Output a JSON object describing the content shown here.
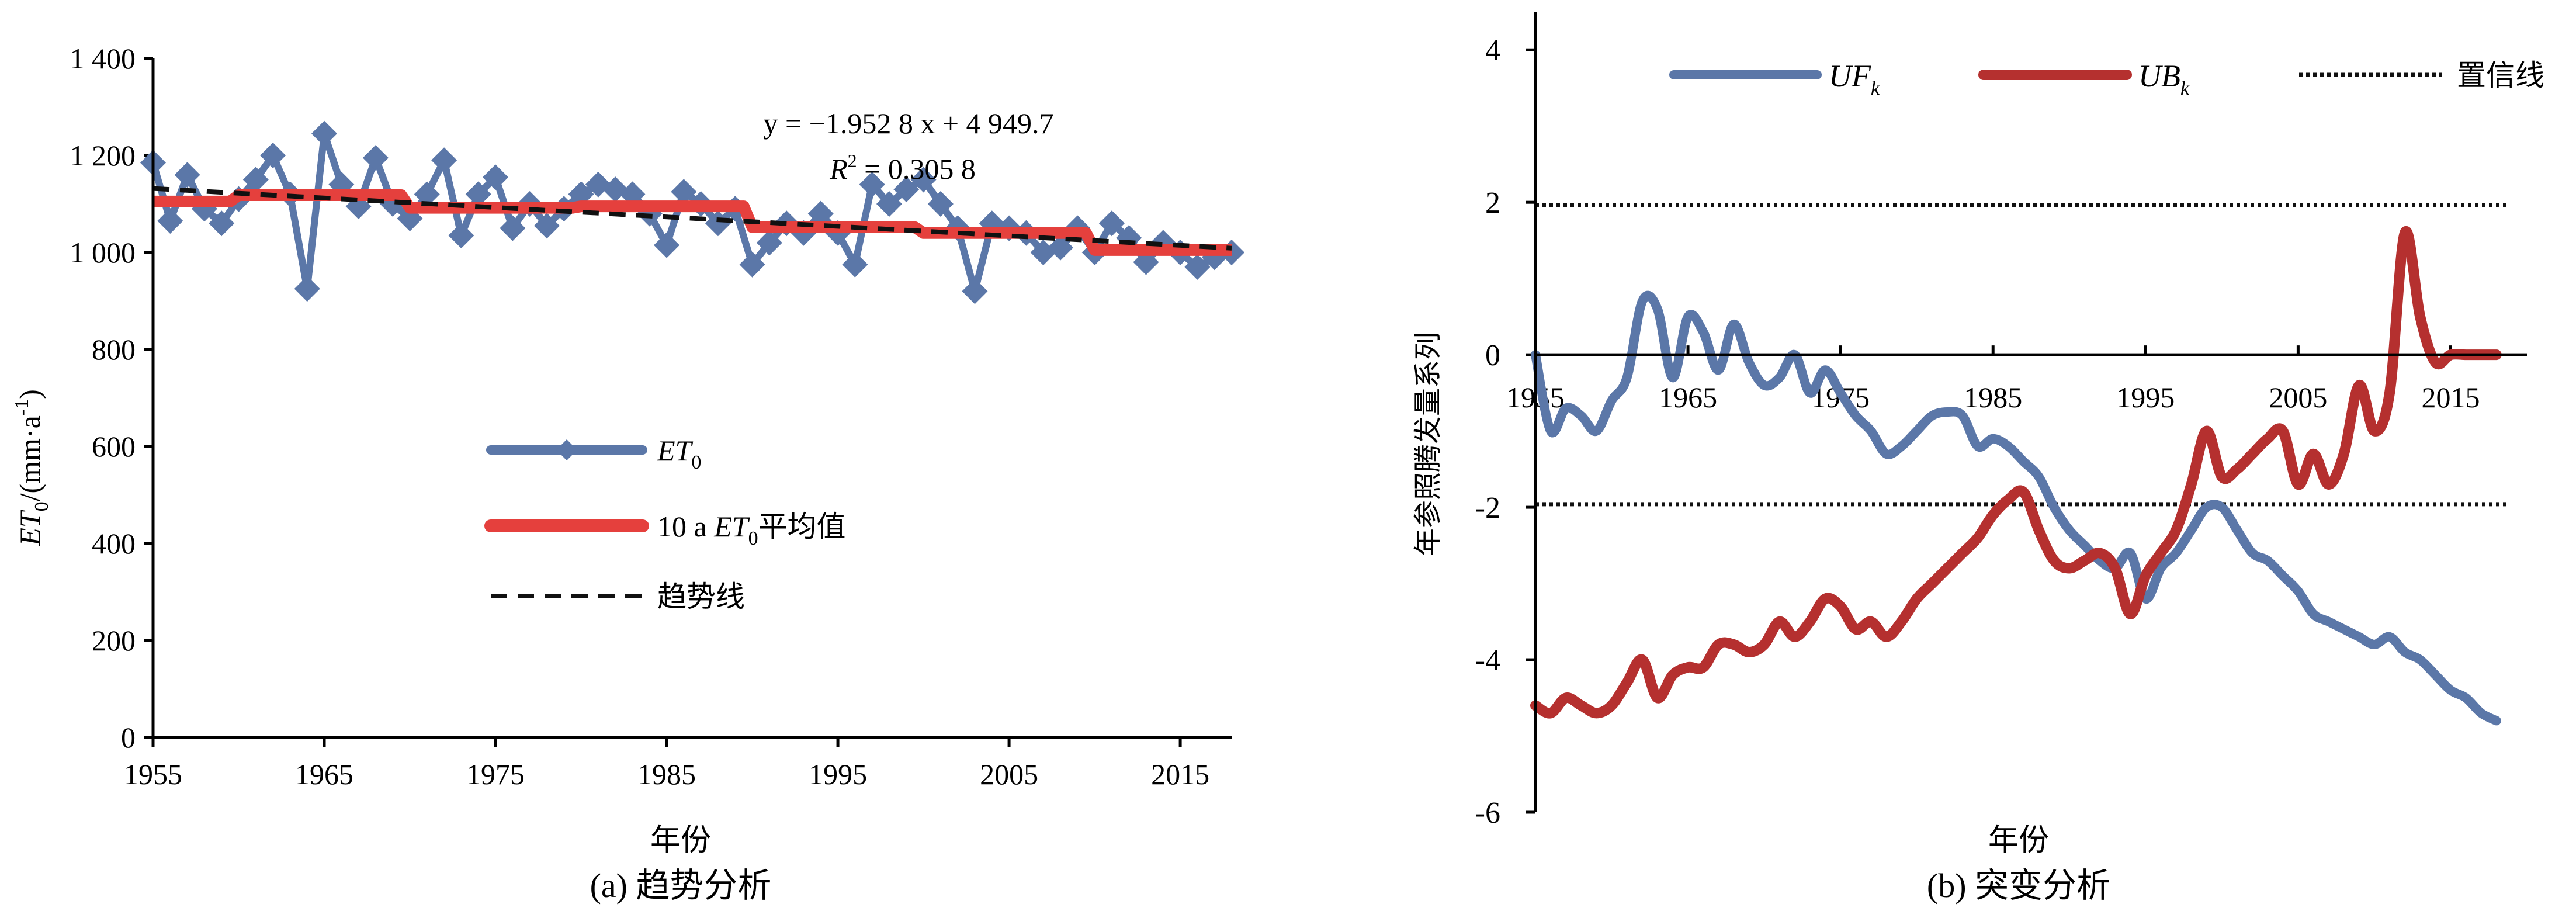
{
  "chart_data": [
    {
      "type": "line",
      "panel_caption": "(a) 趋势分析",
      "xlabel": "年份",
      "ylabel": "ET0/(mm·a-1)",
      "ylabel_parts": {
        "main": "ET",
        "sub": "0",
        "unit_open": "/(mm·a",
        "sup": "-1",
        "unit_close": ")"
      },
      "xlim": [
        1955,
        2018
      ],
      "ylim": [
        0,
        1400
      ],
      "x_ticks": [
        1955,
        1965,
        1975,
        1985,
        1995,
        2005,
        2015
      ],
      "x_tick_labels": [
        "1955",
        "1965",
        "1975",
        "1985",
        "1995",
        "2005",
        "2015"
      ],
      "y_ticks": [
        0,
        200,
        400,
        600,
        800,
        1000,
        1200,
        1400
      ],
      "y_tick_labels": [
        "0",
        "200",
        "400",
        "600",
        "800",
        "1 000",
        "1 200",
        "1 400"
      ],
      "annotation": {
        "equation": "y = −1.952 8 x + 4 949.7",
        "r2_label": "R",
        "r2_sup": "2",
        "r2_value": " = 0.305 8"
      },
      "legend": [
        {
          "key": "et0",
          "name": "ET",
          "sub": "0"
        },
        {
          "key": "mean10",
          "prefix": "10 a ",
          "name": "ET",
          "sub": "0",
          "suffix": "平均值"
        },
        {
          "key": "trend",
          "name": "趋势线"
        }
      ],
      "series": [
        {
          "name": "ET0",
          "color": "#5B77A8",
          "marker": "diamond",
          "x": [
            1955,
            1956,
            1957,
            1958,
            1959,
            1960,
            1961,
            1962,
            1963,
            1964,
            1965,
            1966,
            1967,
            1968,
            1969,
            1970,
            1971,
            1972,
            1973,
            1974,
            1975,
            1976,
            1977,
            1978,
            1979,
            1980,
            1981,
            1982,
            1983,
            1984,
            1985,
            1986,
            1987,
            1988,
            1989,
            1990,
            1991,
            1992,
            1993,
            1994,
            1995,
            1996,
            1997,
            1998,
            1999,
            2000,
            2001,
            2002,
            2003,
            2004,
            2005,
            2006,
            2007,
            2008,
            2009,
            2010,
            2011,
            2012,
            2013,
            2014,
            2015,
            2016,
            2017,
            2018
          ],
          "values": [
            1185,
            1065,
            1160,
            1090,
            1060,
            1110,
            1150,
            1200,
            1120,
            925,
            1245,
            1140,
            1095,
            1195,
            1100,
            1070,
            1120,
            1190,
            1035,
            1120,
            1155,
            1050,
            1100,
            1055,
            1090,
            1120,
            1140,
            1130,
            1120,
            1080,
            1015,
            1125,
            1100,
            1060,
            1090,
            975,
            1020,
            1060,
            1040,
            1080,
            1040,
            975,
            1140,
            1100,
            1130,
            1150,
            1100,
            1050,
            920,
            1060,
            1050,
            1040,
            1000,
            1010,
            1050,
            1000,
            1060,
            1030,
            980,
            1020,
            1000,
            970,
            990,
            1000
          ]
        },
        {
          "name": "10 a ET0平均值",
          "color": "#E5403D",
          "x": [
            1955,
            1959.5,
            1960,
            1969.5,
            1970,
            1979.5,
            1980,
            1989.5,
            1990,
            1999.5,
            2000,
            2009.5,
            2010,
            2018
          ],
          "values": [
            1105,
            1105,
            1118,
            1118,
            1092,
            1092,
            1095,
            1095,
            1052,
            1052,
            1040,
            1040,
            1005,
            1005
          ]
        },
        {
          "name": "趋势线",
          "color": "#111111",
          "dashed": true,
          "x": [
            1955,
            2018
          ],
          "values": [
            1131.8,
            1008.8
          ]
        }
      ]
    },
    {
      "type": "line",
      "panel_caption": "(b) 突变分析",
      "xlabel": "年份",
      "ylabel": "年参照腾发量系列",
      "xlim": [
        1955,
        2020
      ],
      "ylim": [
        -6,
        4.5
      ],
      "x_ticks": [
        1955,
        1965,
        1975,
        1985,
        1995,
        2005,
        2015
      ],
      "x_tick_labels": [
        "1955",
        "1965",
        "1975",
        "1985",
        "1995",
        "2005",
        "2015"
      ],
      "y_ticks": [
        -6,
        -4,
        -2,
        0,
        2,
        4
      ],
      "y_tick_labels": [
        "-6",
        "-4",
        "-2",
        "0",
        "2",
        "4"
      ],
      "confidence_levels": [
        1.96,
        -1.96
      ],
      "legend": [
        {
          "key": "uf",
          "name": "UF",
          "sub": "k"
        },
        {
          "key": "ub",
          "name": "UB",
          "sub": "k"
        },
        {
          "key": "conf",
          "name": "置信线"
        }
      ],
      "series": [
        {
          "name": "UFk",
          "color": "#5B77A8",
          "x": [
            1955,
            1956,
            1957,
            1958,
            1959,
            1960,
            1961,
            1962,
            1963,
            1964,
            1965,
            1966,
            1967,
            1968,
            1969,
            1970,
            1971,
            1972,
            1973,
            1974,
            1975,
            1976,
            1977,
            1978,
            1979,
            1980,
            1981,
            1982,
            1983,
            1984,
            1985,
            1986,
            1987,
            1988,
            1989,
            1990,
            1991,
            1992,
            1993,
            1994,
            1995,
            1996,
            1997,
            1998,
            1999,
            2000,
            2001,
            2002,
            2003,
            2004,
            2005,
            2006,
            2007,
            2008,
            2009,
            2010,
            2011,
            2012,
            2013,
            2014,
            2015,
            2016,
            2017,
            2018
          ],
          "values": [
            0,
            -1.0,
            -0.7,
            -0.8,
            -1.0,
            -0.6,
            -0.3,
            0.7,
            0.6,
            -0.3,
            0.5,
            0.3,
            -0.2,
            0.4,
            -0.1,
            -0.4,
            -0.3,
            0.0,
            -0.5,
            -0.2,
            -0.5,
            -0.8,
            -1.0,
            -1.3,
            -1.2,
            -1.0,
            -0.8,
            -0.75,
            -0.8,
            -1.2,
            -1.1,
            -1.2,
            -1.4,
            -1.6,
            -2.0,
            -2.3,
            -2.5,
            -2.7,
            -2.8,
            -2.6,
            -3.2,
            -2.8,
            -2.6,
            -2.3,
            -2.0,
            -2.0,
            -2.3,
            -2.6,
            -2.7,
            -2.9,
            -3.1,
            -3.4,
            -3.5,
            -3.6,
            -3.7,
            -3.8,
            -3.7,
            -3.9,
            -4.0,
            -4.2,
            -4.4,
            -4.5,
            -4.7,
            -4.8
          ]
        },
        {
          "name": "UBk",
          "color": "#B5302F",
          "x": [
            1955,
            1956,
            1957,
            1958,
            1959,
            1960,
            1961,
            1962,
            1963,
            1964,
            1965,
            1966,
            1967,
            1968,
            1969,
            1970,
            1971,
            1972,
            1973,
            1974,
            1975,
            1976,
            1977,
            1978,
            1979,
            1980,
            1981,
            1982,
            1983,
            1984,
            1985,
            1986,
            1987,
            1988,
            1989,
            1990,
            1991,
            1992,
            1993,
            1994,
            1995,
            1996,
            1997,
            1998,
            1999,
            2000,
            2001,
            2002,
            2003,
            2004,
            2005,
            2006,
            2007,
            2008,
            2009,
            2010,
            2011,
            2012,
            2013,
            2014,
            2015,
            2016,
            2017,
            2018
          ],
          "values": [
            -4.6,
            -4.7,
            -4.5,
            -4.6,
            -4.7,
            -4.6,
            -4.3,
            -4.0,
            -4.5,
            -4.2,
            -4.1,
            -4.1,
            -3.8,
            -3.8,
            -3.9,
            -3.8,
            -3.5,
            -3.7,
            -3.5,
            -3.2,
            -3.3,
            -3.6,
            -3.5,
            -3.7,
            -3.5,
            -3.2,
            -3.0,
            -2.8,
            -2.6,
            -2.4,
            -2.1,
            -1.9,
            -1.8,
            -2.3,
            -2.7,
            -2.8,
            -2.7,
            -2.6,
            -2.8,
            -3.4,
            -2.9,
            -2.6,
            -2.3,
            -1.7,
            -1.0,
            -1.6,
            -1.5,
            -1.3,
            -1.1,
            -1.0,
            -1.7,
            -1.3,
            -1.7,
            -1.3,
            -0.4,
            -1.0,
            -0.5,
            1.6,
            0.5,
            -0.1,
            0.0,
            0.0,
            0.0,
            0.0
          ]
        }
      ]
    }
  ]
}
